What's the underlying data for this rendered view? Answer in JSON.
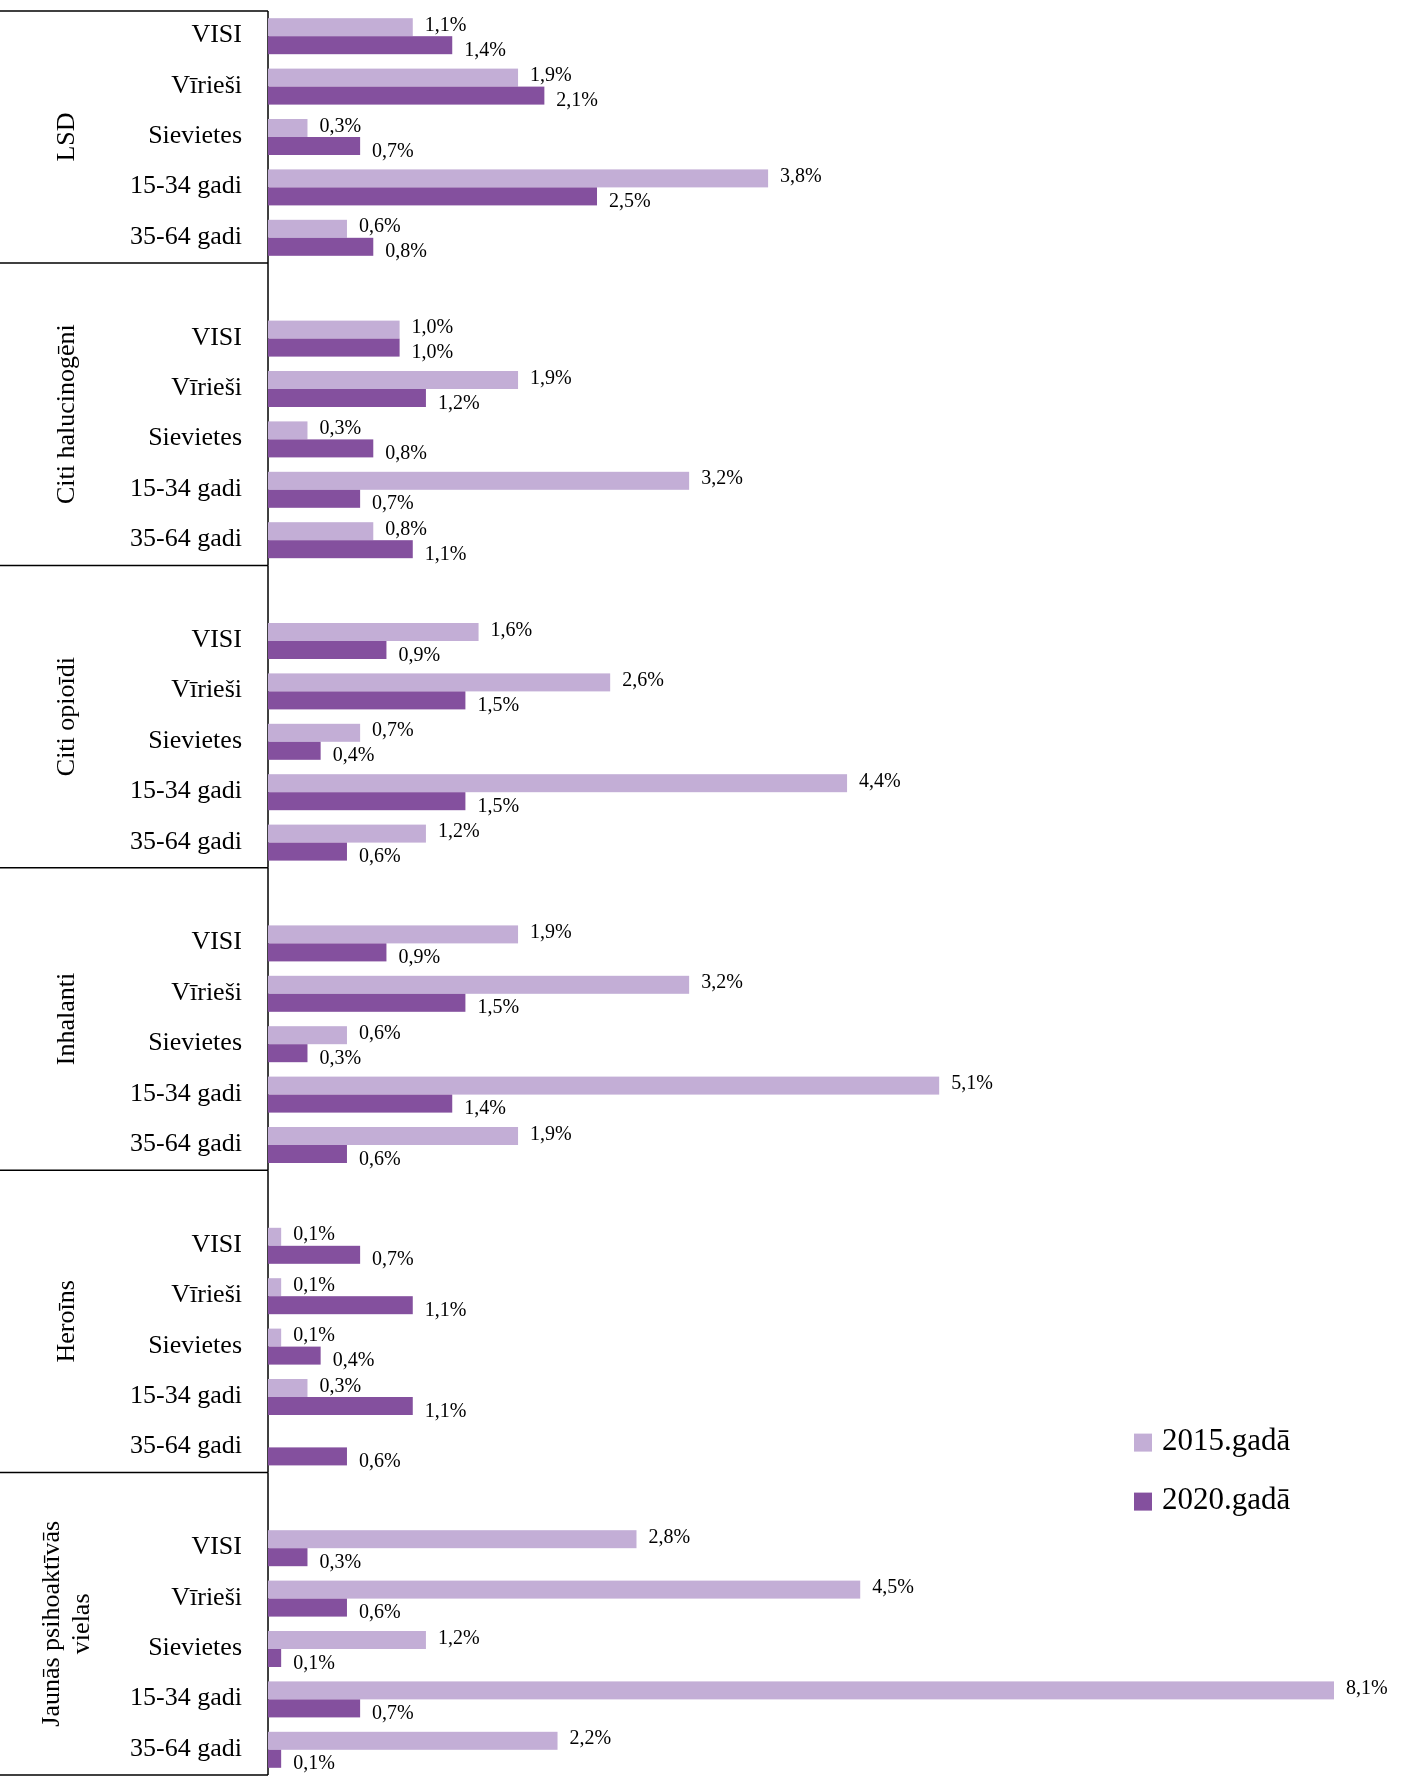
{
  "chart_data": [
    {
      "type": "bar",
      "orientation": "horizontal",
      "ylabel": "LSD",
      "tick_labels": "y",
      "categories": [
        "VISI",
        "Vīrieši",
        "Sievietes",
        "15-34 gadi",
        "35-64 gadi"
      ],
      "series": [
        {
          "color": "#c3aed6",
          "values": [
            1.1,
            1.9,
            0.3,
            3.8,
            0.6
          ],
          "value_labels": [
            "1,1%",
            "1,9%",
            "0,3%",
            "3,8%",
            "0,6%"
          ]
        },
        {
          "color": "#84509e",
          "values": [
            1.4,
            2.1,
            0.7,
            2.5,
            0.8
          ],
          "value_labels": [
            "1,4%",
            "2,1%",
            "0,7%",
            "2,5%",
            "0,8%"
          ]
        }
      ]
    },
    {
      "type": "bar",
      "orientation": "horizontal",
      "ylabel": "Citi halucinogēni",
      "tick_labels": "y",
      "categories": [
        "VISI",
        "Vīrieši",
        "Sievietes",
        "15-34 gadi",
        "35-64 gadi"
      ],
      "series": [
        {
          "color": "#c3aed6",
          "values": [
            1.0,
            1.9,
            0.3,
            3.2,
            0.8
          ],
          "value_labels": [
            "1,0%",
            "1,9%",
            "0,3%",
            "3,2%",
            "0,8%"
          ]
        },
        {
          "color": "#84509e",
          "values": [
            1.0,
            1.2,
            0.8,
            0.7,
            1.1
          ],
          "value_labels": [
            "1,0%",
            "1,2%",
            "0,8%",
            "0,7%",
            "1,1%"
          ]
        }
      ]
    },
    {
      "type": "bar",
      "orientation": "horizontal",
      "ylabel": "Citi opioīdi",
      "tick_labels": "y",
      "categories": [
        "VISI",
        "Vīrieši",
        "Sievietes",
        "15-34 gadi",
        "35-64 gadi"
      ],
      "series": [
        {
          "color": "#c3aed6",
          "values": [
            1.6,
            2.6,
            0.7,
            4.4,
            1.2
          ],
          "value_labels": [
            "1,6%",
            "2,6%",
            "0,7%",
            "4,4%",
            "1,2%"
          ]
        },
        {
          "color": "#84509e",
          "values": [
            0.9,
            1.5,
            0.4,
            1.5,
            0.6
          ],
          "value_labels": [
            "0,9%",
            "1,5%",
            "0,4%",
            "1,5%",
            "0,6%"
          ]
        }
      ]
    },
    {
      "type": "bar",
      "orientation": "horizontal",
      "ylabel": "Inhalanti",
      "tick_labels": "y",
      "categories": [
        "VISI",
        "Vīrieši",
        "Sievietes",
        "15-34 gadi",
        "35-64 gadi"
      ],
      "series": [
        {
          "color": "#c3aed6",
          "values": [
            1.9,
            3.2,
            0.6,
            5.1,
            1.9
          ],
          "value_labels": [
            "1,9%",
            "3,2%",
            "0,6%",
            "5,1%",
            "1,9%"
          ]
        },
        {
          "color": "#84509e",
          "values": [
            0.9,
            1.5,
            0.3,
            1.4,
            0.6
          ],
          "value_labels": [
            "0,9%",
            "1,5%",
            "0,3%",
            "1,4%",
            "0,6%"
          ]
        }
      ]
    },
    {
      "type": "bar",
      "orientation": "horizontal",
      "ylabel": "Heroīns",
      "tick_labels": "y",
      "legend": "bottom right",
      "categories": [
        "VISI",
        "Vīrieši",
        "Sievietes",
        "15-34 gadi",
        "35-64 gadi"
      ],
      "series": [
        {
          "name": "2015.gadā",
          "color": "#c3aed6",
          "values": [
            0.1,
            0.1,
            0.1,
            0.3,
            null
          ],
          "value_labels": [
            "0,1%",
            "0,1%",
            "0,1%",
            "0,3%",
            null
          ]
        },
        {
          "name": "2020.gadā",
          "color": "#84509e",
          "values": [
            0.7,
            1.1,
            0.4,
            1.1,
            0.6
          ],
          "value_labels": [
            "0,7%",
            "1,1%",
            "0,4%",
            "1,1%",
            "0,6%"
          ]
        }
      ]
    },
    {
      "type": "bar",
      "orientation": "horizontal",
      "ylabel": "Jaunās psihoaktīvās vielas",
      "tick_labels": "y",
      "categories": [
        "VISI",
        "Vīrieši",
        "Sievietes",
        "15-34 gadi",
        "35-64 gadi"
      ],
      "series": [
        {
          "color": "#c3aed6",
          "values": [
            2.8,
            4.5,
            1.2,
            8.1,
            2.2
          ],
          "value_labels": [
            "2,8%",
            "4,5%",
            "1,2%",
            "8,1%",
            "2,2%"
          ]
        },
        {
          "color": "#84509e",
          "values": [
            0.3,
            0.6,
            0.1,
            0.7,
            0.1
          ],
          "value_labels": [
            "0,3%",
            "0,6%",
            "0,1%",
            "0,7%",
            "0,1%"
          ]
        }
      ]
    }
  ]
}
